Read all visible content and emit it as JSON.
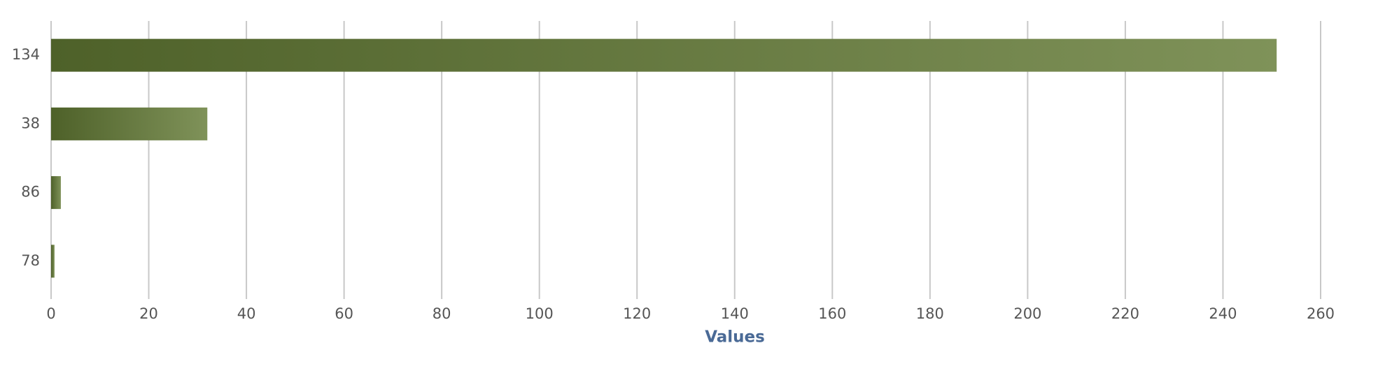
{
  "chart_data": {
    "type": "hbar",
    "categories": [
      "134",
      "38",
      "86",
      "78"
    ],
    "values": [
      251,
      32,
      2,
      0.7
    ],
    "gradient": [
      "#4e6129",
      "#7f9259"
    ],
    "xlabel": "Values",
    "xlim": [
      0,
      260
    ],
    "xticks": [
      0,
      20,
      40,
      60,
      80,
      100,
      120,
      140,
      160,
      180,
      200,
      220,
      240,
      260
    ],
    "grid": true
  }
}
